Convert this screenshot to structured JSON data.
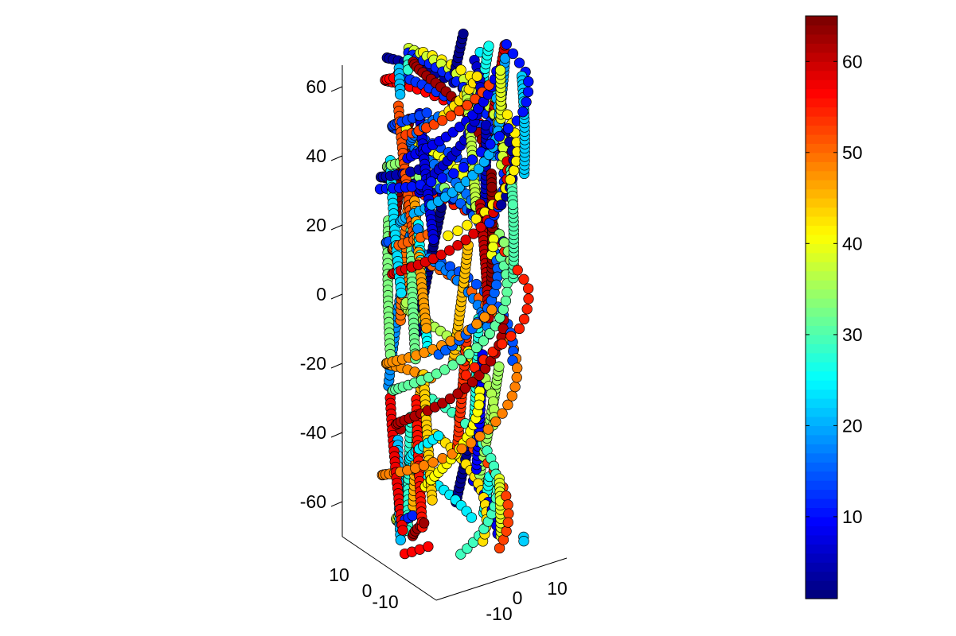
{
  "chart_data": {
    "type": "scatter",
    "dimensions": "3d",
    "title": "",
    "xlabel": "",
    "ylabel": "",
    "zlabel": "",
    "x_ticks": [
      "-10",
      "0",
      "10"
    ],
    "y_ticks": [
      "-10",
      "0",
      "10"
    ],
    "z_ticks": [
      "-60",
      "-40",
      "-20",
      "0",
      "20",
      "40",
      "60"
    ],
    "xlim": [
      -15,
      15
    ],
    "ylim": [
      -15,
      15
    ],
    "zlim": [
      -70,
      67
    ],
    "colormap": "jet",
    "color_range": [
      1,
      65
    ],
    "colorbar": {
      "ticks": [
        "10",
        "20",
        "30",
        "40",
        "50",
        "60"
      ],
      "tick_values": [
        10,
        20,
        30,
        40,
        50,
        60
      ],
      "placement": "right"
    },
    "marker": {
      "shape": "circle",
      "edge_color": "#000000"
    },
    "point_count_shown": "approximately 1600 points arranged in 65 helical strands (color = strand index 1–65)",
    "structure": {
      "description": "points lie along tilted helical strands filling a square prism x,y in [-13,13], z in [-70,67]",
      "strands": 65,
      "points_per_strand": 26,
      "helix_pitch_z_per_turn": 140
    },
    "grid": false,
    "legend": "none"
  }
}
